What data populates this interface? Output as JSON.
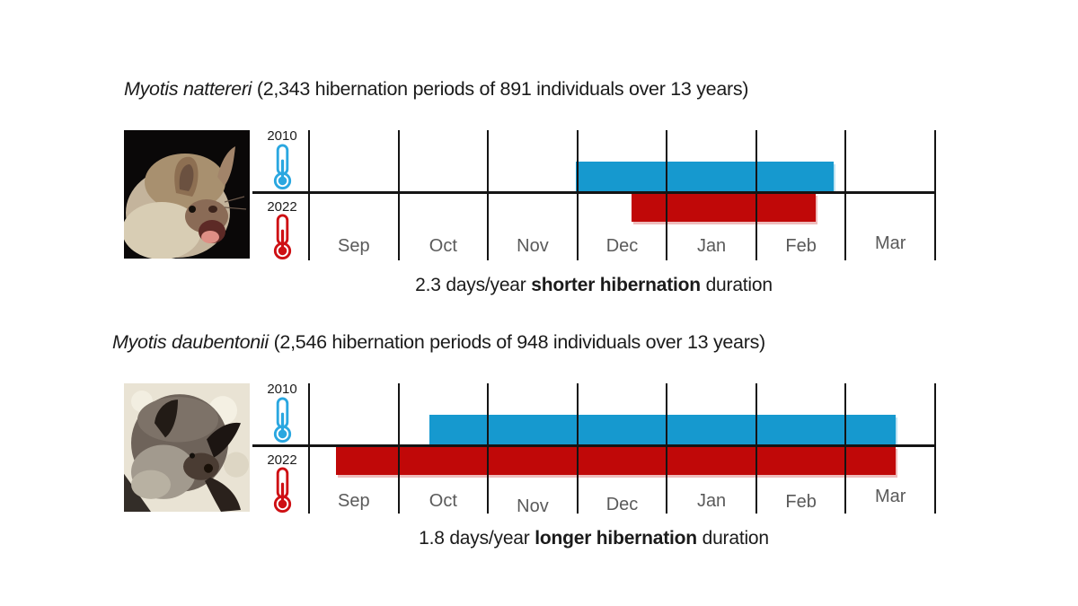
{
  "colors": {
    "blue": "#1699CF",
    "red": "#C00808",
    "thermo_blue": "#2AA7E0",
    "thermo_red": "#CE1014",
    "axis": "#141414",
    "month_label": "#5A5A5A",
    "text": "#1B1B1B"
  },
  "chart_data": [
    {
      "type": "bar",
      "subtype": "horizontal-timeline-span",
      "title": {
        "species": "Myotis nattereri",
        "suffix": " (2,343 hibernation periods of 891 individuals over 13 years)"
      },
      "months": [
        "Sep",
        "Oct",
        "Nov",
        "Dec",
        "Jan",
        "Feb",
        "Mar"
      ],
      "axis_units": "months_after_Sep_1",
      "axis_range": [
        0,
        7
      ],
      "series": [
        {
          "year": "2010",
          "color_key": "blue",
          "icon": "thermometer-blue-icon",
          "start_month": 2.98,
          "end_month": 5.87
        },
        {
          "year": "2022",
          "color_key": "red",
          "icon": "thermometer-red-icon",
          "start_month": 3.61,
          "end_month": 5.66
        }
      ],
      "caption": {
        "pre": "2.3 days/year ",
        "bold": "shorter hibernation",
        "post": " duration"
      }
    },
    {
      "type": "bar",
      "subtype": "horizontal-timeline-span",
      "title": {
        "species": "Myotis daubentonii",
        "suffix": " (2,546 hibernation periods of 948 individuals over 13 years)"
      },
      "months": [
        "Sep",
        "Oct",
        "Nov",
        "Dec",
        "Jan",
        "Feb",
        "Mar"
      ],
      "axis_units": "months_after_Sep_1",
      "axis_range": [
        0,
        7
      ],
      "series": [
        {
          "year": "2010",
          "color_key": "blue",
          "icon": "thermometer-blue-icon",
          "start_month": 1.35,
          "end_month": 6.56
        },
        {
          "year": "2022",
          "color_key": "red",
          "icon": "thermometer-red-icon",
          "start_month": 0.3,
          "end_month": 6.56
        }
      ],
      "caption": {
        "pre": "1.8 days/year ",
        "bold": "longer hibernation",
        "post": " duration"
      }
    }
  ]
}
